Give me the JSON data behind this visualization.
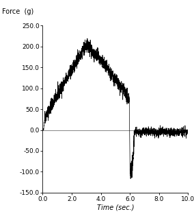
{
  "title": "",
  "xlabel": "Time (sec.)",
  "ylabel": "Force  (g)",
  "xlim": [
    0,
    10.0
  ],
  "ylim": [
    -150.0,
    250.0
  ],
  "yticks": [
    -150.0,
    -100.0,
    -50.0,
    0.0,
    50.0,
    100.0,
    150.0,
    200.0,
    250.0
  ],
  "xticks": [
    0.0,
    2.0,
    4.0,
    6.0,
    8.0,
    10.0
  ],
  "line_color": "#000000",
  "background_color": "#ffffff",
  "noise_amplitude": 8.0,
  "noise_amplitude2": 5.0,
  "noise_amplitude3": 12.0
}
